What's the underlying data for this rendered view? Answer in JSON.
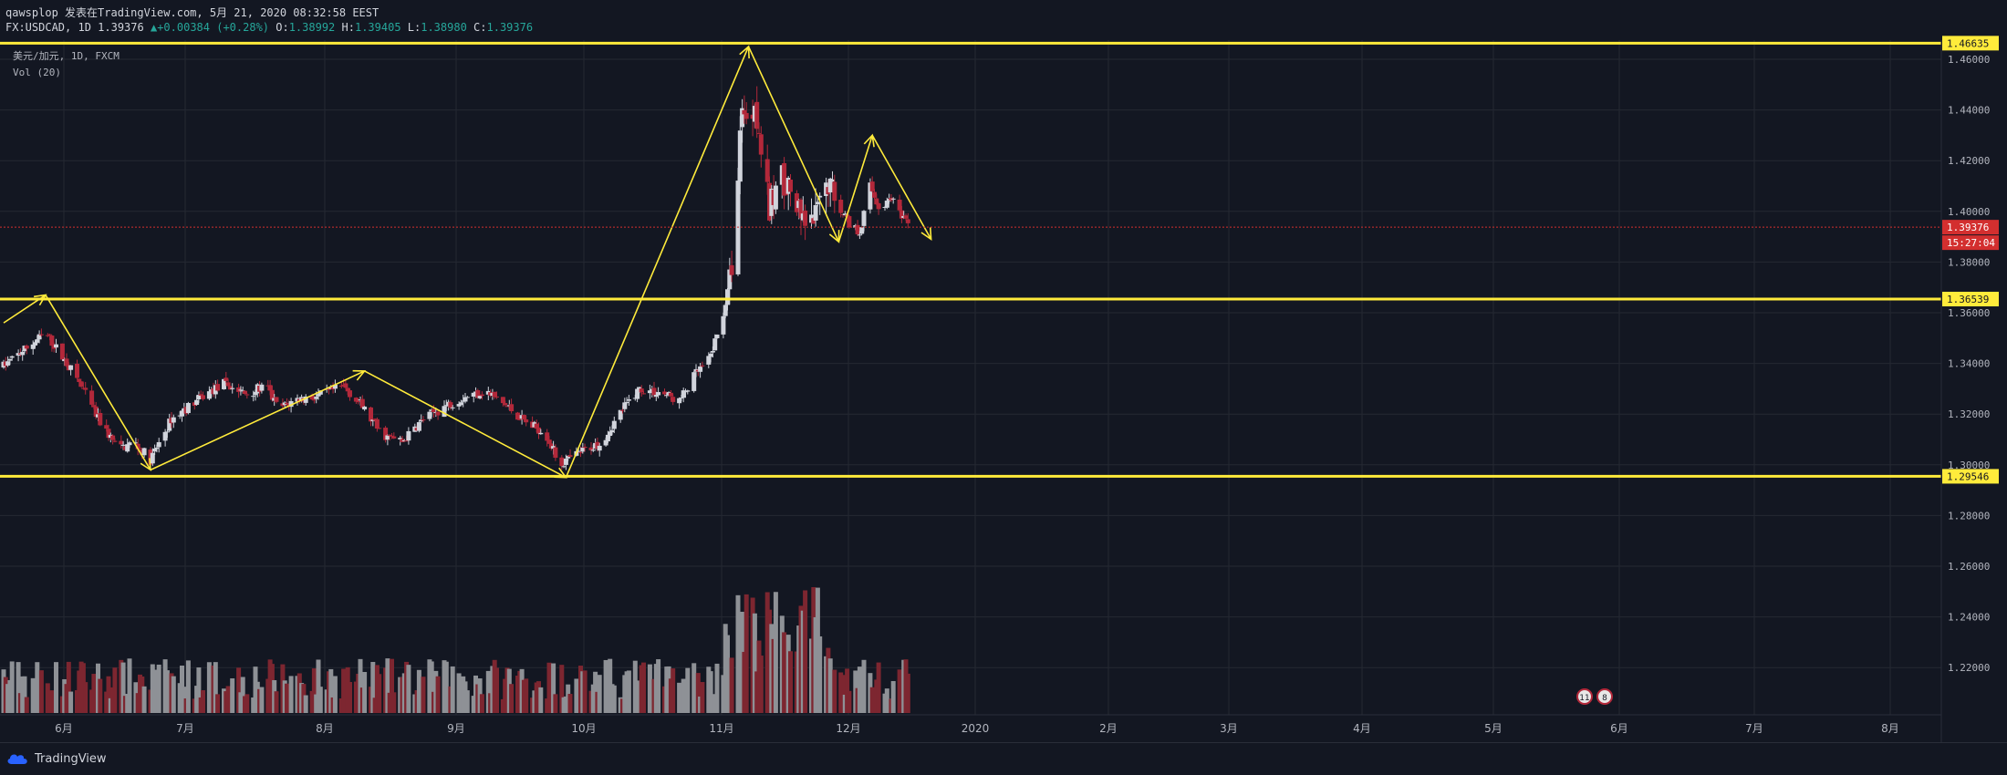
{
  "header": {
    "author_line": "qawsplop 发表在TradingView.com, 5月 21, 2020 08:32:58 EEST",
    "symbol": "FX:USDCAD, 1D",
    "last": "1.39376",
    "change": "▲+0.00384 (+0.28%)",
    "o_label": "O:",
    "o_val": "1.38992",
    "h_label": "H:",
    "h_val": "1.39405",
    "l_label": "L:",
    "l_val": "1.38980",
    "c_label": "C:",
    "c_val": "1.39376"
  },
  "legend": {
    "series": "美元/加元, 1D, FXCM",
    "volume": "Vol (20)"
  },
  "footer": {
    "brand": "TradingView"
  },
  "colors": {
    "background": "#131722",
    "grid": "#242832",
    "up": "#d1d4dc",
    "down": "#b2283a",
    "vol_up": "#8e9196",
    "vol_down": "#7d2630",
    "lines": "#ffeb3b",
    "price_badge": "#d32f2f"
  },
  "chart_data": {
    "type": "candlestick",
    "symbol": "USDCAD",
    "interval": "1D",
    "ylim": [
      1.21,
      1.466
    ],
    "y_ticks": [
      "1.46000",
      "1.44000",
      "1.42000",
      "1.40000",
      "1.38000",
      "1.36000",
      "1.34000",
      "1.32000",
      "1.30000",
      "1.28000",
      "1.26000",
      "1.24000",
      "1.22000"
    ],
    "x_ticks": [
      "6月",
      "7月",
      "8月",
      "9月",
      "10月",
      "11月",
      "12月",
      "2020",
      "2月",
      "3月",
      "4月",
      "5月",
      "6月",
      "7月",
      "8月"
    ],
    "horizontal_levels": [
      {
        "label": "1.46635",
        "value": 1.46635
      },
      {
        "label": "1.36539",
        "value": 1.36539
      },
      {
        "label": "1.29546",
        "value": 1.29546
      }
    ],
    "current_price": {
      "label": "1.39376",
      "value": 1.39376,
      "countdown": "15:27:04"
    },
    "anchors": [
      {
        "d": 0,
        "p": 1.339
      },
      {
        "d": 20,
        "p": 1.352
      },
      {
        "d": 35,
        "p": 1.334
      },
      {
        "d": 45,
        "p": 1.318
      },
      {
        "d": 55,
        "p": 1.306
      },
      {
        "d": 62,
        "p": 1.309
      },
      {
        "d": 70,
        "p": 1.302
      },
      {
        "d": 80,
        "p": 1.318
      },
      {
        "d": 95,
        "p": 1.327
      },
      {
        "d": 105,
        "p": 1.332
      },
      {
        "d": 115,
        "p": 1.328
      },
      {
        "d": 125,
        "p": 1.331
      },
      {
        "d": 131,
        "p": 1.322
      },
      {
        "d": 140,
        "p": 1.326
      },
      {
        "d": 150,
        "p": 1.327
      },
      {
        "d": 162,
        "p": 1.331
      },
      {
        "d": 170,
        "p": 1.324
      },
      {
        "d": 180,
        "p": 1.312
      },
      {
        "d": 190,
        "p": 1.309
      },
      {
        "d": 200,
        "p": 1.318
      },
      {
        "d": 210,
        "p": 1.323
      },
      {
        "d": 220,
        "p": 1.327
      },
      {
        "d": 230,
        "p": 1.329
      },
      {
        "d": 240,
        "p": 1.323
      },
      {
        "d": 250,
        "p": 1.316
      },
      {
        "d": 258,
        "p": 1.313
      },
      {
        "d": 265,
        "p": 1.3
      },
      {
        "d": 275,
        "p": 1.305
      },
      {
        "d": 285,
        "p": 1.309
      },
      {
        "d": 295,
        "p": 1.322
      },
      {
        "d": 303,
        "p": 1.33
      },
      {
        "d": 315,
        "p": 1.328
      },
      {
        "d": 322,
        "p": 1.325
      },
      {
        "d": 330,
        "p": 1.336
      },
      {
        "d": 336,
        "p": 1.341
      },
      {
        "d": 342,
        "p": 1.356
      },
      {
        "d": 346,
        "p": 1.372
      },
      {
        "d": 349,
        "p": 1.395
      },
      {
        "d": 352,
        "p": 1.445
      },
      {
        "d": 355,
        "p": 1.43
      },
      {
        "d": 358,
        "p": 1.445
      },
      {
        "d": 362,
        "p": 1.418
      },
      {
        "d": 365,
        "p": 1.4
      },
      {
        "d": 370,
        "p": 1.415
      },
      {
        "d": 375,
        "p": 1.408
      },
      {
        "d": 380,
        "p": 1.396
      },
      {
        "d": 385,
        "p": 1.394
      },
      {
        "d": 388,
        "p": 1.4
      },
      {
        "d": 393,
        "p": 1.412
      },
      {
        "d": 398,
        "p": 1.404
      },
      {
        "d": 403,
        "p": 1.395
      },
      {
        "d": 408,
        "p": 1.392
      },
      {
        "d": 413,
        "p": 1.41
      },
      {
        "d": 418,
        "p": 1.4
      },
      {
        "d": 423,
        "p": 1.406
      },
      {
        "d": 428,
        "p": 1.397
      },
      {
        "d": 432,
        "p": 1.394
      }
    ],
    "price_arrows": [
      [
        [
          0,
          1.356
        ],
        [
          20,
          1.367
        ]
      ],
      [
        [
          20,
          1.367
        ],
        [
          70,
          1.298
        ]
      ],
      [
        [
          70,
          1.298
        ],
        [
          172,
          1.337
        ]
      ],
      [
        [
          172,
          1.337
        ],
        [
          268,
          1.295
        ]
      ],
      [
        [
          268,
          1.295
        ],
        [
          355,
          1.465
        ]
      ],
      [
        [
          355,
          1.465
        ],
        [
          398,
          1.388
        ]
      ],
      [
        [
          398,
          1.388
        ],
        [
          414,
          1.43
        ]
      ],
      [
        [
          414,
          1.43
        ],
        [
          442,
          1.389
        ]
      ]
    ],
    "event_badges": [
      {
        "label": "11"
      },
      {
        "label": "8"
      }
    ],
    "volume": "Vol (20) histogram, red/grey bars by candle direction"
  }
}
